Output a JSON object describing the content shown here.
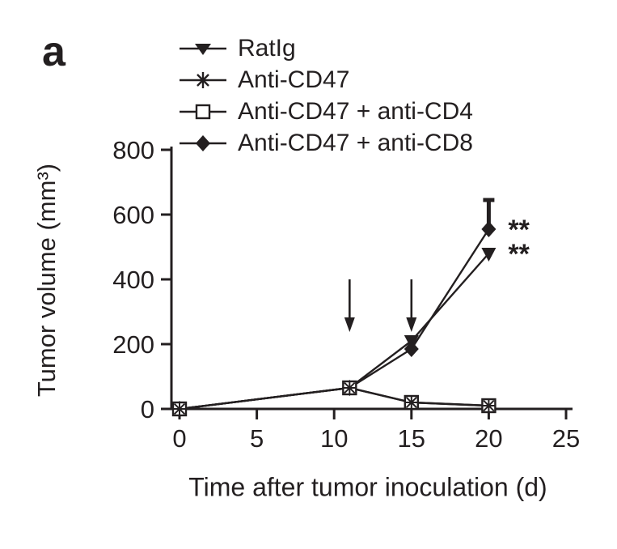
{
  "ink_color": "#231f20",
  "background_color": "#ffffff",
  "panel_label": "a",
  "chart_data": {
    "type": "line",
    "title": "",
    "xlabel": "Time after tumor inoculation (d)",
    "ylabel": "Tumor volume (mm³)",
    "xlim": [
      0,
      25
    ],
    "ylim": [
      0,
      800
    ],
    "xticks": [
      0,
      5,
      10,
      15,
      20,
      25
    ],
    "yticks": [
      0,
      200,
      400,
      600,
      800
    ],
    "grid": false,
    "legend_position": "top-left",
    "treatment_arrows_x": [
      11,
      15
    ],
    "series": [
      {
        "name": "RatIg",
        "marker": "triangle-down-filled",
        "x": [
          0,
          11,
          15,
          20
        ],
        "y": [
          0,
          65,
          210,
          480
        ],
        "significance": "**"
      },
      {
        "name": "Anti-CD47",
        "marker": "asterisk",
        "x": [
          0,
          11,
          15,
          20
        ],
        "y": [
          0,
          65,
          20,
          10
        ],
        "significance": ""
      },
      {
        "name": "Anti-CD47 + anti-CD4",
        "marker": "square-open",
        "x": [
          0,
          11,
          15,
          20
        ],
        "y": [
          0,
          65,
          20,
          10
        ],
        "significance": ""
      },
      {
        "name": "Anti-CD47 + anti-CD8",
        "marker": "diamond-filled",
        "x": [
          0,
          11,
          15,
          20
        ],
        "y": [
          0,
          65,
          185,
          555
        ],
        "error_up": [
          0,
          0,
          0,
          90
        ],
        "significance": "**"
      }
    ]
  }
}
